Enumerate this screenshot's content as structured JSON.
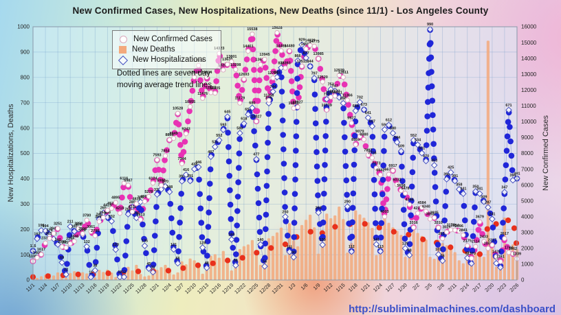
{
  "title": "New Confirmed Cases, New Hospitalizations, New Deaths (since 11/1) - Los Angeles County",
  "note": {
    "line1": "Dotted lines are seven day",
    "line2": "moving average trend lines."
  },
  "footer": {
    "url": "http://subliminalmachines.com/dashboard"
  },
  "legend": [
    {
      "label": "New Confirmed Cases",
      "marker": "circle-outline"
    },
    {
      "label": "New Deaths",
      "marker": "orange-square"
    },
    {
      "label": "New Hospitalizations",
      "marker": "blue-diamond"
    }
  ],
  "colors": {
    "bars": "#f3a97d",
    "cases_trend": "#e832b4",
    "hosp_trend": "#2026d8",
    "deaths_trend": "#e8301c",
    "diamond_stroke": "#4450c0",
    "circle_stroke": "#d9a8bc",
    "grid": "rgba(100,145,195,0.38)",
    "case_line": "rgba(225,178,198,0.85)",
    "hosp_line": "rgba(105,125,205,0.55)"
  },
  "chart_data": {
    "type": "bar+scatter",
    "axes": {
      "left": {
        "label": "New Hospitalizations, Deaths",
        "min": 0,
        "max": 1000,
        "step": 100
      },
      "right": {
        "label": "New Confirmed Cases",
        "min": 0,
        "max": 16000,
        "step": 1000
      },
      "x": {
        "first_date": "11/1",
        "last_date": "2/26",
        "tick_every_days": 3
      }
    },
    "x_tick_labels": [
      "11/1",
      "11/4",
      "11/7",
      "11/10",
      "11/13",
      "11/16",
      "11/19",
      "11/22",
      "11/25",
      "11/28",
      "12/1",
      "12/4",
      "12/7",
      "12/10",
      "12/13",
      "12/16",
      "12/19",
      "12/22",
      "12/25",
      "12/28",
      "12/31",
      "1/3",
      "1/6",
      "1/9",
      "1/12",
      "1/15",
      "1/18",
      "1/21",
      "1/24",
      "1/27",
      "1/30",
      "2/2",
      "2/5",
      "2/8",
      "2/11",
      "2/14",
      "2/17",
      "2/20",
      "2/23",
      "2/26"
    ],
    "series": [
      {
        "name": "New Confirmed Cases",
        "axis": "right",
        "style": "circle-marker-labeled",
        "values": [
          1190,
          1408,
          1617,
          2338,
          2630,
          2946,
          3251,
          2098,
          2050,
          2298,
          2446,
          3258,
          2926,
          3780,
          3061,
          2795,
          3692,
          3944,
          4415,
          4522,
          4895,
          4219,
          6116,
          5987,
          4311,
          4818,
          3813,
          4962,
          5278,
          6124,
          7593,
          5982,
          7854,
          8860,
          8949,
          10528,
          7344,
          9243,
          10955,
          12819,
          13559,
          11476,
          12814,
          11837,
          11805,
          14323,
          13269,
          13630,
          13801,
          13298,
          11179,
          12693,
          14461,
          15538,
          10027,
          13611,
          13945,
          11358,
          12764,
          15628,
          14486,
          13393,
          14480,
          10851,
          10927,
          13511,
          14595,
          14829,
          14775,
          13985,
          12520,
          10739,
          11554,
          11623,
          12939,
          12811,
          11366,
          9927,
          8559,
          9079,
          8880,
          7897,
          7716,
          7073,
          6642,
          4003,
          6677,
          6917,
          6032,
          5658,
          5478,
          4766,
          3316,
          4223,
          4584,
          4340,
          3853,
          3935,
          3310,
          2614,
          3026,
          3170,
          3154,
          3096,
          2841,
          2175,
          1370,
          2114,
          3679,
          2433,
          2001,
          2217,
          1476,
          1161,
          2617,
          1744,
          1662,
          1339
        ]
      },
      {
        "name": "New Hospitalizations",
        "axis": "left",
        "style": "diamond-marker-labeled",
        "values": [
          115,
          163,
          196,
          194,
          178,
          162,
          140,
          69,
          22,
          211,
          192,
          201,
          178,
          132,
          11,
          38,
          240,
          265,
          248,
          232,
          120,
          12,
          12,
          260,
          289,
          245,
          308,
          135,
          45,
          31,
          338,
          358,
          370,
          348,
          121,
          66,
          390,
          416,
          391,
          438,
          446,
          128,
          48,
          487,
          526,
          552,
          593,
          645,
          160,
          58,
          580,
          618,
          654,
          680,
          477,
          140,
          54,
          698,
          744,
          801,
          838,
          250,
          111,
          90,
          866,
          929,
          877,
          844,
          797,
          266,
          139,
          714,
          753,
          747,
          721,
          698,
          290,
          112,
          668,
          702,
          673,
          641,
          607,
          141,
          113,
          594,
          612,
          580,
          544,
          509,
          125,
          98,
          552,
          534,
          501,
          470,
          990,
          453,
          101,
          76,
          398,
          425,
          391,
          358,
          341,
          87,
          65,
          350,
          341,
          309,
          287,
          241,
          66,
          50,
          347,
          671,
          394,
          401
        ]
      },
      {
        "name": "New Deaths",
        "axis": "left",
        "style": "bar",
        "values": [
          12,
          8,
          15,
          21,
          25,
          18,
          30,
          14,
          9,
          28,
          35,
          22,
          31,
          26,
          6,
          10,
          40,
          32,
          41,
          29,
          12,
          5,
          44,
          52,
          38,
          60,
          24,
          14,
          18,
          35,
          40,
          51,
          60,
          45,
          22,
          30,
          74,
          62,
          85,
          78,
          56,
          25,
          40,
          96,
          102,
          88,
          115,
          75,
          38,
          52,
          122,
          134,
          140,
          158,
          110,
          60,
          95,
          165,
          174,
          188,
          207,
          98,
          224,
          156,
          133,
          217,
          238,
          258,
          208,
          104,
          138,
          262,
          244,
          255,
          290,
          241,
          108,
          146,
          275,
          259,
          246,
          228,
          206,
          98,
          132,
          244,
          226,
          208,
          194,
          178,
          92,
          110,
          198,
          186,
          174,
          160,
          92,
          84,
          158,
          146,
          137,
          122,
          110,
          78,
          66,
          132,
          121,
          108,
          98,
          92,
          945,
          130,
          52,
          60,
          247,
          130,
          141,
          123
        ]
      }
    ],
    "trend_lines": {
      "description": "seven day moving average trend lines drawn as dotted paths",
      "cases_trend_follows": "New Confirmed Cases",
      "hosp_trend_follows": "New Hospitalizations",
      "deaths_trend_follows": "7-day average of New Deaths"
    }
  }
}
